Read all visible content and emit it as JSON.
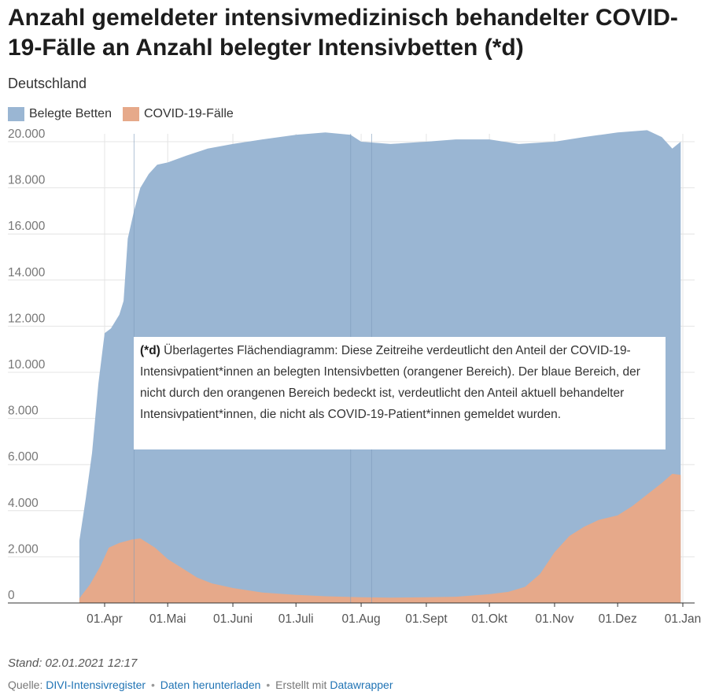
{
  "title": "Anzahl gemeldeter intensivmedizinisch behandelter COVID-19-Fälle an Anzahl belegter Intensivbetten (*d)",
  "subtitle": "Deutschland",
  "colors": {
    "beds": "#9ab6d3",
    "covid": "#e6a98a",
    "link": "#1f73b4"
  },
  "annotation": {
    "lead": "(*d)",
    "text": "Überlagertes Flächendiagramm: Diese Zeitreihe verdeutlicht den Anteil der COVID-19-Intensivpatient*innen an belegten Intensivbetten (orangener Bereich). Der blaue Bereich, der nicht durch den orangenen Bereich bedeckt ist, verdeutlicht den Anteil aktuell behandelter Intensivpatient*innen, die nicht als COVID-19-Patient*innen gemeldet wurden."
  },
  "footer": {
    "stand": "Stand: 02.01.2021 12:17",
    "source_label": "Quelle:",
    "source_link": "DIVI-Intensivregister",
    "download_link": "Daten herunterladen",
    "created_label": "Erstellt mit",
    "created_link": "Datawrapper"
  },
  "chart_data": {
    "type": "area",
    "overlay": true,
    "x_start": "2020-03-20",
    "x_end": "2020-12-31",
    "xlim": [
      "2020-03-01",
      "2021-01-01"
    ],
    "ylim": [
      0,
      21000
    ],
    "y_ticks": [
      0,
      2000,
      4000,
      6000,
      8000,
      10000,
      12000,
      14000,
      16000,
      18000,
      20000
    ],
    "y_tick_labels": [
      "0",
      "2.000",
      "4.000",
      "6.000",
      "8.000",
      "10.000",
      "12.000",
      "14.000",
      "16.000",
      "18.000",
      "20.000"
    ],
    "x_ticks": [
      "2020-04-01",
      "2020-05-01",
      "2020-06-01",
      "2020-07-01",
      "2020-08-01",
      "2020-09-01",
      "2020-10-01",
      "2020-11-01",
      "2020-12-01",
      "2021-01-01"
    ],
    "x_tick_labels": [
      "01.Apr",
      "01.Mai",
      "01.Juni",
      "01.Juli",
      "01.Aug",
      "01.Sept",
      "01.Okt",
      "01.Nov",
      "01.Dez",
      "01.Jan"
    ],
    "grid": true,
    "legend_position": "top-left",
    "series": [
      {
        "name": "Belegte Betten",
        "color": "#9ab6d3",
        "points": [
          [
            "2020-03-20",
            2700
          ],
          [
            "2020-03-23",
            4500
          ],
          [
            "2020-03-26",
            6500
          ],
          [
            "2020-03-29",
            9500
          ],
          [
            "2020-04-01",
            11700
          ],
          [
            "2020-04-04",
            11900
          ],
          [
            "2020-04-08",
            12500
          ],
          [
            "2020-04-10",
            13100
          ],
          [
            "2020-04-12",
            15800
          ],
          [
            "2020-04-15",
            17000
          ],
          [
            "2020-04-18",
            18000
          ],
          [
            "2020-04-22",
            18600
          ],
          [
            "2020-04-26",
            19000
          ],
          [
            "2020-05-01",
            19100
          ],
          [
            "2020-05-10",
            19400
          ],
          [
            "2020-05-20",
            19700
          ],
          [
            "2020-06-01",
            19900
          ],
          [
            "2020-06-15",
            20100
          ],
          [
            "2020-07-01",
            20300
          ],
          [
            "2020-07-15",
            20400
          ],
          [
            "2020-07-27",
            20300
          ],
          [
            "2020-08-01",
            20000
          ],
          [
            "2020-08-15",
            19900
          ],
          [
            "2020-09-01",
            20000
          ],
          [
            "2020-09-15",
            20100
          ],
          [
            "2020-10-01",
            20100
          ],
          [
            "2020-10-15",
            19900
          ],
          [
            "2020-11-01",
            20000
          ],
          [
            "2020-11-15",
            20200
          ],
          [
            "2020-12-01",
            20400
          ],
          [
            "2020-12-15",
            20500
          ],
          [
            "2020-12-22",
            20200
          ],
          [
            "2020-12-27",
            19700
          ],
          [
            "2020-12-31",
            20000
          ]
        ]
      },
      {
        "name": "COVID-19-Fälle",
        "color": "#e6a98a",
        "points": [
          [
            "2020-03-20",
            200
          ],
          [
            "2020-03-25",
            800
          ],
          [
            "2020-03-30",
            1600
          ],
          [
            "2020-04-03",
            2400
          ],
          [
            "2020-04-08",
            2600
          ],
          [
            "2020-04-14",
            2750
          ],
          [
            "2020-04-18",
            2800
          ],
          [
            "2020-04-25",
            2400
          ],
          [
            "2020-05-01",
            1900
          ],
          [
            "2020-05-08",
            1500
          ],
          [
            "2020-05-15",
            1100
          ],
          [
            "2020-05-22",
            850
          ],
          [
            "2020-06-01",
            650
          ],
          [
            "2020-06-15",
            450
          ],
          [
            "2020-07-01",
            350
          ],
          [
            "2020-07-15",
            290
          ],
          [
            "2020-08-01",
            250
          ],
          [
            "2020-08-15",
            230
          ],
          [
            "2020-09-01",
            250
          ],
          [
            "2020-09-15",
            270
          ],
          [
            "2020-10-01",
            380
          ],
          [
            "2020-10-10",
            480
          ],
          [
            "2020-10-18",
            700
          ],
          [
            "2020-10-25",
            1250
          ],
          [
            "2020-11-01",
            2200
          ],
          [
            "2020-11-08",
            2900
          ],
          [
            "2020-11-15",
            3300
          ],
          [
            "2020-11-22",
            3600
          ],
          [
            "2020-12-01",
            3800
          ],
          [
            "2020-12-08",
            4200
          ],
          [
            "2020-12-15",
            4700
          ],
          [
            "2020-12-22",
            5200
          ],
          [
            "2020-12-27",
            5600
          ],
          [
            "2020-12-31",
            5550
          ]
        ]
      }
    ]
  }
}
